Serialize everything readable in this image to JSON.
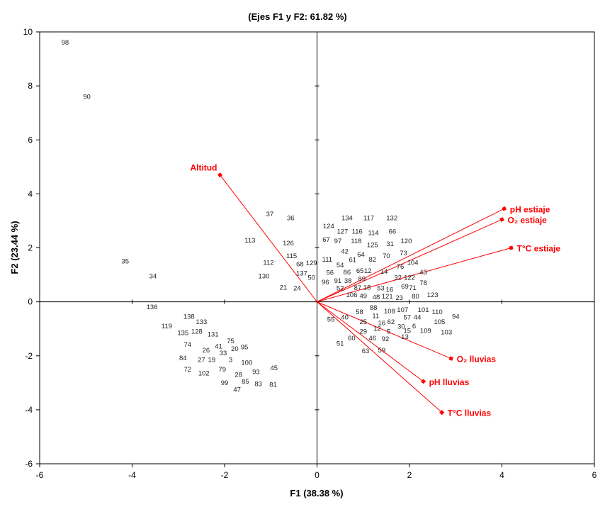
{
  "chart_data": {
    "type": "scatter",
    "title": "(Ejes F1 y F2: 61.82 %)",
    "xlabel": "F1 (38.38 %)",
    "ylabel": "F2 (23.44 %)",
    "xlim": [
      -6,
      6
    ],
    "ylim": [
      -6,
      10
    ],
    "xticks": [
      -6,
      -4,
      -2,
      0,
      2,
      4,
      6
    ],
    "yticks": [
      -6,
      -4,
      -2,
      0,
      2,
      4,
      6,
      8,
      10
    ],
    "grid": false,
    "colors": {
      "vectors": "#ff0000",
      "points": "#222222",
      "axes": "#000000"
    },
    "vectors": [
      {
        "label": "Altitud",
        "x": -2.1,
        "y": 4.7
      },
      {
        "label": "pH estiaje",
        "x": 4.05,
        "y": 3.45
      },
      {
        "label": "O₂ estiaje",
        "x": 4.0,
        "y": 3.05
      },
      {
        "label": "T°C estiaje",
        "x": 4.2,
        "y": 2.0
      },
      {
        "label": "O₂ lluvias",
        "x": 2.9,
        "y": -2.1
      },
      {
        "label": "pH lluvias",
        "x": 2.3,
        "y": -2.95
      },
      {
        "label": "T°C lluvias",
        "x": 2.7,
        "y": -4.1
      }
    ],
    "points": [
      {
        "label": "98",
        "x": -5.45,
        "y": 9.6
      },
      {
        "label": "90",
        "x": -4.98,
        "y": 7.6
      },
      {
        "label": "37",
        "x": -1.02,
        "y": 3.25
      },
      {
        "label": "36",
        "x": -0.57,
        "y": 3.1
      },
      {
        "label": "113",
        "x": -1.45,
        "y": 2.27
      },
      {
        "label": "126",
        "x": -0.62,
        "y": 2.17
      },
      {
        "label": "115",
        "x": -0.55,
        "y": 1.7
      },
      {
        "label": "112",
        "x": -1.05,
        "y": 1.45
      },
      {
        "label": "68",
        "x": -0.37,
        "y": 1.4
      },
      {
        "label": "129",
        "x": -0.12,
        "y": 1.43
      },
      {
        "label": "137",
        "x": -0.33,
        "y": 1.05
      },
      {
        "label": "50",
        "x": -0.12,
        "y": 0.9
      },
      {
        "label": "130",
        "x": -1.15,
        "y": 0.95
      },
      {
        "label": "21",
        "x": -0.73,
        "y": 0.53
      },
      {
        "label": "24",
        "x": -0.43,
        "y": 0.5
      },
      {
        "label": "35",
        "x": -4.15,
        "y": 1.5
      },
      {
        "label": "34",
        "x": -3.55,
        "y": 0.95
      },
      {
        "label": "136",
        "x": -3.57,
        "y": -0.2
      },
      {
        "label": "138",
        "x": -2.77,
        "y": -0.55
      },
      {
        "label": "133",
        "x": -2.5,
        "y": -0.75
      },
      {
        "label": "119",
        "x": -3.25,
        "y": -0.9
      },
      {
        "label": "135",
        "x": -2.9,
        "y": -1.15
      },
      {
        "label": "128",
        "x": -2.6,
        "y": -1.1
      },
      {
        "label": "131",
        "x": -2.25,
        "y": -1.2
      },
      {
        "label": "75",
        "x": -1.87,
        "y": -1.45
      },
      {
        "label": "74",
        "x": -2.8,
        "y": -1.58
      },
      {
        "label": "41",
        "x": -2.13,
        "y": -1.65
      },
      {
        "label": "20",
        "x": -1.78,
        "y": -1.75
      },
      {
        "label": "95",
        "x": -1.57,
        "y": -1.68
      },
      {
        "label": "26",
        "x": -2.4,
        "y": -1.8
      },
      {
        "label": "33",
        "x": -2.03,
        "y": -1.9
      },
      {
        "label": "84",
        "x": -2.9,
        "y": -2.08
      },
      {
        "label": "27",
        "x": -2.5,
        "y": -2.15
      },
      {
        "label": "19",
        "x": -2.28,
        "y": -2.15
      },
      {
        "label": "3",
        "x": -1.87,
        "y": -2.15
      },
      {
        "label": "100",
        "x": -1.52,
        "y": -2.25
      },
      {
        "label": "72",
        "x": -2.8,
        "y": -2.5
      },
      {
        "label": "102",
        "x": -2.45,
        "y": -2.65
      },
      {
        "label": "79",
        "x": -2.05,
        "y": -2.5
      },
      {
        "label": "45",
        "x": -0.93,
        "y": -2.45
      },
      {
        "label": "93",
        "x": -1.32,
        "y": -2.6
      },
      {
        "label": "28",
        "x": -1.7,
        "y": -2.7
      },
      {
        "label": "99",
        "x": -2.0,
        "y": -3.0
      },
      {
        "label": "85",
        "x": -1.55,
        "y": -2.95
      },
      {
        "label": "83",
        "x": -1.27,
        "y": -3.05
      },
      {
        "label": "81",
        "x": -0.95,
        "y": -3.07
      },
      {
        "label": "47",
        "x": -1.73,
        "y": -3.25
      },
      {
        "label": "134",
        "x": 0.65,
        "y": 3.1
      },
      {
        "label": "117",
        "x": 1.12,
        "y": 3.1
      },
      {
        "label": "132",
        "x": 1.62,
        "y": 3.1
      },
      {
        "label": "124",
        "x": 0.25,
        "y": 2.8
      },
      {
        "label": "127",
        "x": 0.55,
        "y": 2.6
      },
      {
        "label": "116",
        "x": 0.87,
        "y": 2.6
      },
      {
        "label": "114",
        "x": 1.22,
        "y": 2.55
      },
      {
        "label": "66",
        "x": 1.63,
        "y": 2.6
      },
      {
        "label": "67",
        "x": 0.2,
        "y": 2.3
      },
      {
        "label": "97",
        "x": 0.45,
        "y": 2.25
      },
      {
        "label": "118",
        "x": 0.85,
        "y": 2.25
      },
      {
        "label": "125",
        "x": 1.2,
        "y": 2.1
      },
      {
        "label": "31",
        "x": 1.58,
        "y": 2.15
      },
      {
        "label": "120",
        "x": 1.93,
        "y": 2.25
      },
      {
        "label": "42",
        "x": 0.6,
        "y": 1.87
      },
      {
        "label": "64",
        "x": 0.95,
        "y": 1.75
      },
      {
        "label": "70",
        "x": 1.5,
        "y": 1.7
      },
      {
        "label": "73",
        "x": 1.87,
        "y": 1.8
      },
      {
        "label": "111",
        "x": 0.22,
        "y": 1.57
      },
      {
        "label": "61",
        "x": 0.77,
        "y": 1.55
      },
      {
        "label": "82",
        "x": 1.2,
        "y": 1.57
      },
      {
        "label": "104",
        "x": 2.07,
        "y": 1.45
      },
      {
        "label": "54",
        "x": 0.5,
        "y": 1.35
      },
      {
        "label": "12",
        "x": 1.1,
        "y": 1.15
      },
      {
        "label": "76",
        "x": 1.8,
        "y": 1.3
      },
      {
        "label": "56",
        "x": 0.28,
        "y": 1.08
      },
      {
        "label": "86",
        "x": 0.65,
        "y": 1.1
      },
      {
        "label": "65",
        "x": 0.93,
        "y": 1.15
      },
      {
        "label": "14",
        "x": 1.45,
        "y": 1.12
      },
      {
        "label": "43",
        "x": 2.3,
        "y": 1.1
      },
      {
        "label": "32",
        "x": 1.75,
        "y": 0.9
      },
      {
        "label": "122",
        "x": 2.0,
        "y": 0.9
      },
      {
        "label": "96",
        "x": 0.18,
        "y": 0.72
      },
      {
        "label": "91",
        "x": 0.45,
        "y": 0.78
      },
      {
        "label": "38",
        "x": 0.67,
        "y": 0.78
      },
      {
        "label": "89",
        "x": 0.97,
        "y": 0.85
      },
      {
        "label": "78",
        "x": 2.3,
        "y": 0.7
      },
      {
        "label": "52",
        "x": 0.5,
        "y": 0.5
      },
      {
        "label": "87",
        "x": 0.88,
        "y": 0.52
      },
      {
        "label": "18",
        "x": 1.08,
        "y": 0.53
      },
      {
        "label": "53",
        "x": 1.38,
        "y": 0.5
      },
      {
        "label": "16",
        "x": 1.57,
        "y": 0.45
      },
      {
        "label": "69",
        "x": 1.9,
        "y": 0.57
      },
      {
        "label": "71",
        "x": 2.07,
        "y": 0.52
      },
      {
        "label": "106",
        "x": 0.75,
        "y": 0.25
      },
      {
        "label": "49",
        "x": 1.0,
        "y": 0.22
      },
      {
        "label": "48",
        "x": 1.28,
        "y": 0.17
      },
      {
        "label": "121",
        "x": 1.52,
        "y": 0.2
      },
      {
        "label": "23",
        "x": 1.78,
        "y": 0.15
      },
      {
        "label": "80",
        "x": 2.13,
        "y": 0.2
      },
      {
        "label": "123",
        "x": 2.5,
        "y": 0.25
      },
      {
        "label": "88",
        "x": 1.22,
        "y": -0.22
      },
      {
        "label": "58",
        "x": 0.92,
        "y": -0.38
      },
      {
        "label": "108",
        "x": 1.57,
        "y": -0.35
      },
      {
        "label": "107",
        "x": 1.85,
        "y": -0.3
      },
      {
        "label": "101",
        "x": 2.3,
        "y": -0.3
      },
      {
        "label": "110",
        "x": 2.6,
        "y": -0.38
      },
      {
        "label": "94",
        "x": 3.0,
        "y": -0.55
      },
      {
        "label": "55",
        "x": 0.3,
        "y": -0.65
      },
      {
        "label": "40",
        "x": 0.6,
        "y": -0.58
      },
      {
        "label": "11",
        "x": 1.27,
        "y": -0.52
      },
      {
        "label": "57",
        "x": 1.95,
        "y": -0.57
      },
      {
        "label": "44",
        "x": 2.17,
        "y": -0.57
      },
      {
        "label": "25",
        "x": 1.0,
        "y": -0.75
      },
      {
        "label": "16",
        "x": 1.4,
        "y": -0.78
      },
      {
        "label": "62",
        "x": 1.6,
        "y": -0.75
      },
      {
        "label": "105",
        "x": 2.65,
        "y": -0.75
      },
      {
        "label": "30",
        "x": 1.82,
        "y": -0.92
      },
      {
        "label": "6",
        "x": 2.1,
        "y": -0.9
      },
      {
        "label": "12",
        "x": 1.3,
        "y": -1.0
      },
      {
        "label": "5",
        "x": 1.55,
        "y": -1.1
      },
      {
        "label": "15",
        "x": 1.95,
        "y": -1.08
      },
      {
        "label": "109",
        "x": 2.35,
        "y": -1.08
      },
      {
        "label": "103",
        "x": 2.8,
        "y": -1.12
      },
      {
        "label": "29",
        "x": 1.0,
        "y": -1.1
      },
      {
        "label": "46",
        "x": 1.2,
        "y": -1.35
      },
      {
        "label": "92",
        "x": 1.48,
        "y": -1.38
      },
      {
        "label": "13",
        "x": 1.9,
        "y": -1.3
      },
      {
        "label": "60",
        "x": 0.75,
        "y": -1.35
      },
      {
        "label": "51",
        "x": 0.5,
        "y": -1.55
      },
      {
        "label": "59",
        "x": 1.4,
        "y": -1.8
      },
      {
        "label": "63",
        "x": 1.05,
        "y": -1.82
      }
    ]
  }
}
